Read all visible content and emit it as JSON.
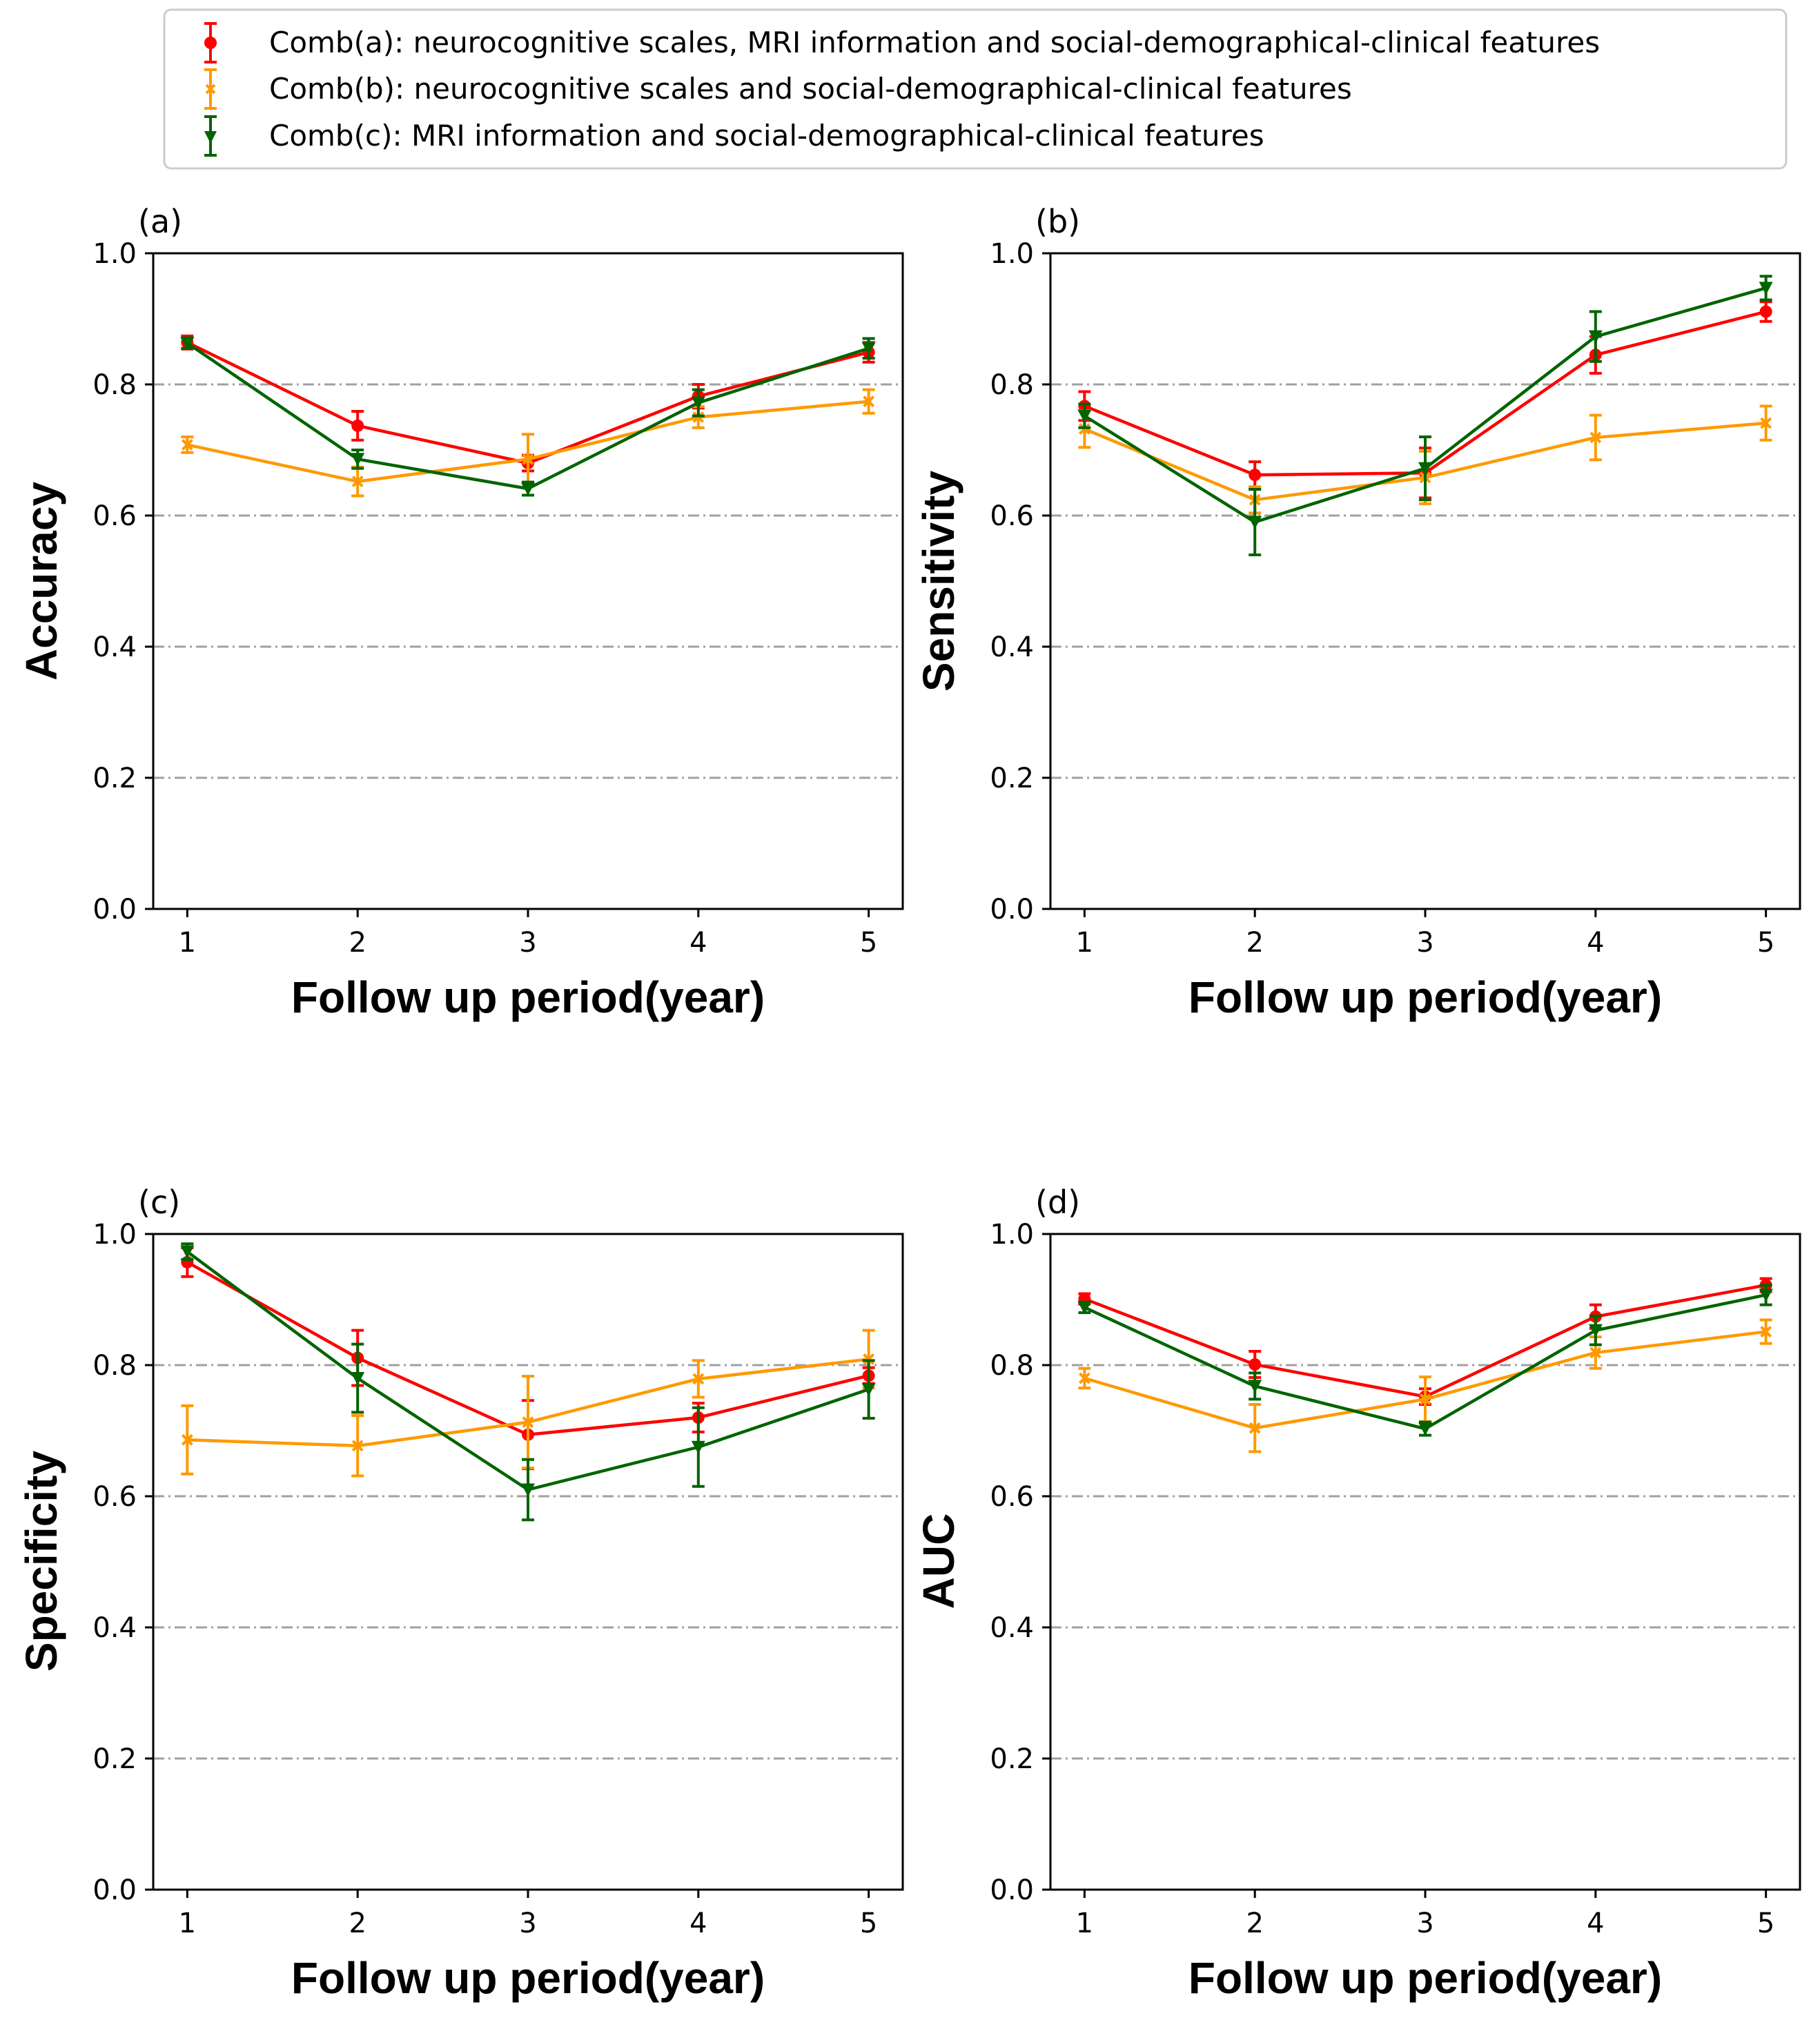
{
  "legend": {
    "location": "top-center",
    "entries": [
      {
        "key": "a",
        "label": "Comb(a): neurocognitive scales, MRI information and social-demographical-clinical features",
        "color": "#ff0000",
        "marker": "circle"
      },
      {
        "key": "b",
        "label": "Comb(b): neurocognitive scales and social-demographical-clinical features",
        "color": "#ff9900",
        "marker": "x"
      },
      {
        "key": "c",
        "label": "Comb(c): MRI information and social-demographical-clinical features",
        "color": "#006400",
        "marker": "triangle-down"
      }
    ]
  },
  "chart_data": [
    {
      "type": "line",
      "panel": "(a)",
      "xlabel": "Follow up period(year)",
      "ylabel": "Accuracy",
      "x": [
        1,
        2,
        3,
        4,
        5
      ],
      "xticks": [
        "1",
        "2",
        "3",
        "4",
        "5"
      ],
      "ylim": [
        0.0,
        1.0
      ],
      "yticks": [
        "0.0",
        "0.2",
        "0.4",
        "0.6",
        "0.8",
        "1.0"
      ],
      "grid": "horizontal dash-dot at 0.2, 0.4, 0.6, 0.8",
      "series": [
        {
          "name": "Comb(a)",
          "values": [
            0.864,
            0.737,
            0.68,
            0.782,
            0.849
          ],
          "errors": [
            0.01,
            0.022,
            0.012,
            0.018,
            0.015
          ]
        },
        {
          "name": "Comb(b)",
          "values": [
            0.708,
            0.652,
            0.686,
            0.75,
            0.774
          ],
          "errors": [
            0.012,
            0.022,
            0.038,
            0.016,
            0.018
          ]
        },
        {
          "name": "Comb(c)",
          "values": [
            0.863,
            0.686,
            0.641,
            0.772,
            0.855
          ],
          "errors": [
            0.008,
            0.014,
            0.01,
            0.02,
            0.015
          ]
        }
      ]
    },
    {
      "type": "line",
      "panel": "(b)",
      "xlabel": "Follow up period(year)",
      "ylabel": "Sensitivity",
      "x": [
        1,
        2,
        3,
        4,
        5
      ],
      "xticks": [
        "1",
        "2",
        "3",
        "4",
        "5"
      ],
      "ylim": [
        0.0,
        1.0
      ],
      "yticks": [
        "0.0",
        "0.2",
        "0.4",
        "0.6",
        "0.8",
        "1.0"
      ],
      "grid": "horizontal dash-dot at 0.2, 0.4, 0.6, 0.8",
      "series": [
        {
          "name": "Comb(a)",
          "values": [
            0.767,
            0.662,
            0.665,
            0.845,
            0.911
          ],
          "errors": [
            0.022,
            0.02,
            0.038,
            0.028,
            0.015
          ]
        },
        {
          "name": "Comb(b)",
          "values": [
            0.732,
            0.624,
            0.658,
            0.719,
            0.741
          ],
          "errors": [
            0.028,
            0.02,
            0.04,
            0.034,
            0.026
          ]
        },
        {
          "name": "Comb(c)",
          "values": [
            0.752,
            0.59,
            0.672,
            0.873,
            0.947
          ],
          "errors": [
            0.018,
            0.05,
            0.048,
            0.038,
            0.018
          ]
        }
      ]
    },
    {
      "type": "line",
      "panel": "(c)",
      "xlabel": "Follow up period(year)",
      "ylabel": "Specificity",
      "x": [
        1,
        2,
        3,
        4,
        5
      ],
      "xticks": [
        "1",
        "2",
        "3",
        "4",
        "5"
      ],
      "ylim": [
        0.0,
        1.0
      ],
      "yticks": [
        "0.0",
        "0.2",
        "0.4",
        "0.6",
        "0.8",
        "1.0"
      ],
      "grid": "horizontal dash-dot at 0.2, 0.4, 0.6, 0.8",
      "series": [
        {
          "name": "Comb(a)",
          "values": [
            0.957,
            0.811,
            0.694,
            0.72,
            0.784
          ],
          "errors": [
            0.022,
            0.042,
            0.052,
            0.022,
            0.012
          ]
        },
        {
          "name": "Comb(b)",
          "values": [
            0.686,
            0.677,
            0.713,
            0.779,
            0.809
          ],
          "errors": [
            0.052,
            0.046,
            0.07,
            0.028,
            0.044
          ]
        },
        {
          "name": "Comb(c)",
          "values": [
            0.973,
            0.78,
            0.61,
            0.675,
            0.763
          ],
          "errors": [
            0.012,
            0.052,
            0.046,
            0.06,
            0.044
          ]
        }
      ]
    },
    {
      "type": "line",
      "panel": "(d)",
      "xlabel": "Follow up period(year)",
      "ylabel": "AUC",
      "x": [
        1,
        2,
        3,
        4,
        5
      ],
      "xticks": [
        "1",
        "2",
        "3",
        "4",
        "5"
      ],
      "ylim": [
        0.0,
        1.0
      ],
      "yticks": [
        "0.0",
        "0.2",
        "0.4",
        "0.6",
        "0.8",
        "1.0"
      ],
      "grid": "horizontal dash-dot at 0.2, 0.4, 0.6, 0.8",
      "series": [
        {
          "name": "Comb(a)",
          "values": [
            0.901,
            0.801,
            0.752,
            0.874,
            0.922
          ],
          "errors": [
            0.008,
            0.02,
            0.012,
            0.018,
            0.01
          ]
        },
        {
          "name": "Comb(b)",
          "values": [
            0.78,
            0.704,
            0.748,
            0.819,
            0.851
          ],
          "errors": [
            0.015,
            0.036,
            0.034,
            0.024,
            0.018
          ]
        },
        {
          "name": "Comb(c)",
          "values": [
            0.888,
            0.768,
            0.703,
            0.853,
            0.907
          ],
          "errors": [
            0.008,
            0.02,
            0.01,
            0.022,
            0.015
          ]
        }
      ]
    }
  ]
}
